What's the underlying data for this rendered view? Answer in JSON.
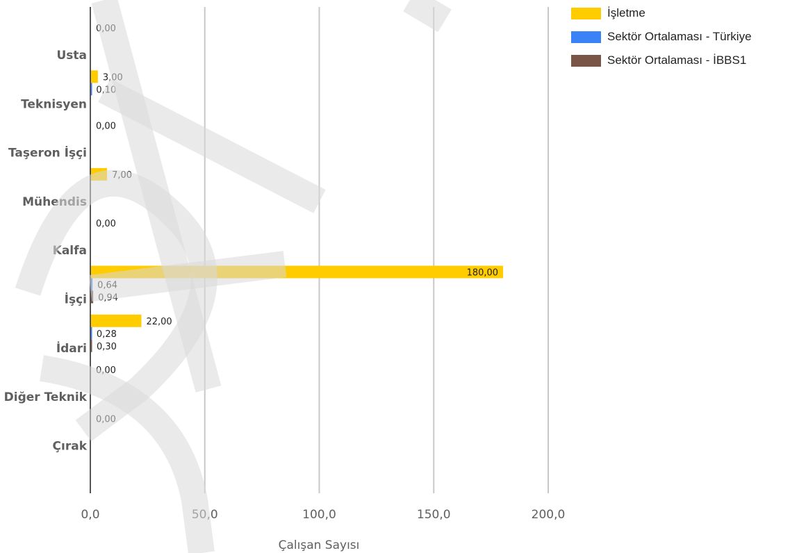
{
  "chart_data": {
    "type": "bar",
    "orientation": "horizontal",
    "categories": [
      "Usta",
      "Teknisyen",
      "Taşeron İşçi",
      "Mühendis",
      "Kalfa",
      "İşçi",
      "İdari",
      "Diğer Teknik",
      "Çırak"
    ],
    "series": [
      {
        "name": "İşletme",
        "color": "#ffcc00",
        "values": [
          0,
          3,
          0,
          7,
          0,
          180,
          22,
          0,
          0
        ],
        "labels": [
          "0,00",
          "3,00",
          "0,00",
          "7,00",
          "0,00",
          "180,00",
          "22,00",
          "0,00",
          "0,00"
        ]
      },
      {
        "name": "Sektör Ortalaması - Türkiye",
        "color": "#3b82f6",
        "values": [
          null,
          0.1,
          null,
          null,
          null,
          0.64,
          0.28,
          null,
          null
        ],
        "labels": [
          "",
          "0,10",
          "",
          "",
          "",
          "0,64",
          "0,28",
          "",
          ""
        ]
      },
      {
        "name": "Sektör Ortalaması - İBBS1",
        "color": "#795548",
        "values": [
          null,
          null,
          null,
          null,
          null,
          0.94,
          0.3,
          null,
          null
        ],
        "labels": [
          "",
          "",
          "",
          "",
          "",
          "0,94",
          "0,30",
          "",
          ""
        ]
      }
    ],
    "xlabel": "Çalışan Sayısı",
    "ylabel": "",
    "xlim": [
      0,
      200
    ],
    "xticks": [
      0,
      50,
      100,
      150,
      200
    ],
    "xtick_labels": [
      "0,0",
      "50,0",
      "100,0",
      "150,0",
      "200,0"
    ],
    "grid": true,
    "legend_position": "top-right"
  },
  "legend": {
    "items": [
      {
        "label": "İşletme",
        "color": "#ffcc00"
      },
      {
        "label": "Sektör Ortalaması - Türkiye",
        "color": "#3b82f6"
      },
      {
        "label": "Sektör Ortalaması - İBBS1",
        "color": "#795548"
      }
    ]
  }
}
